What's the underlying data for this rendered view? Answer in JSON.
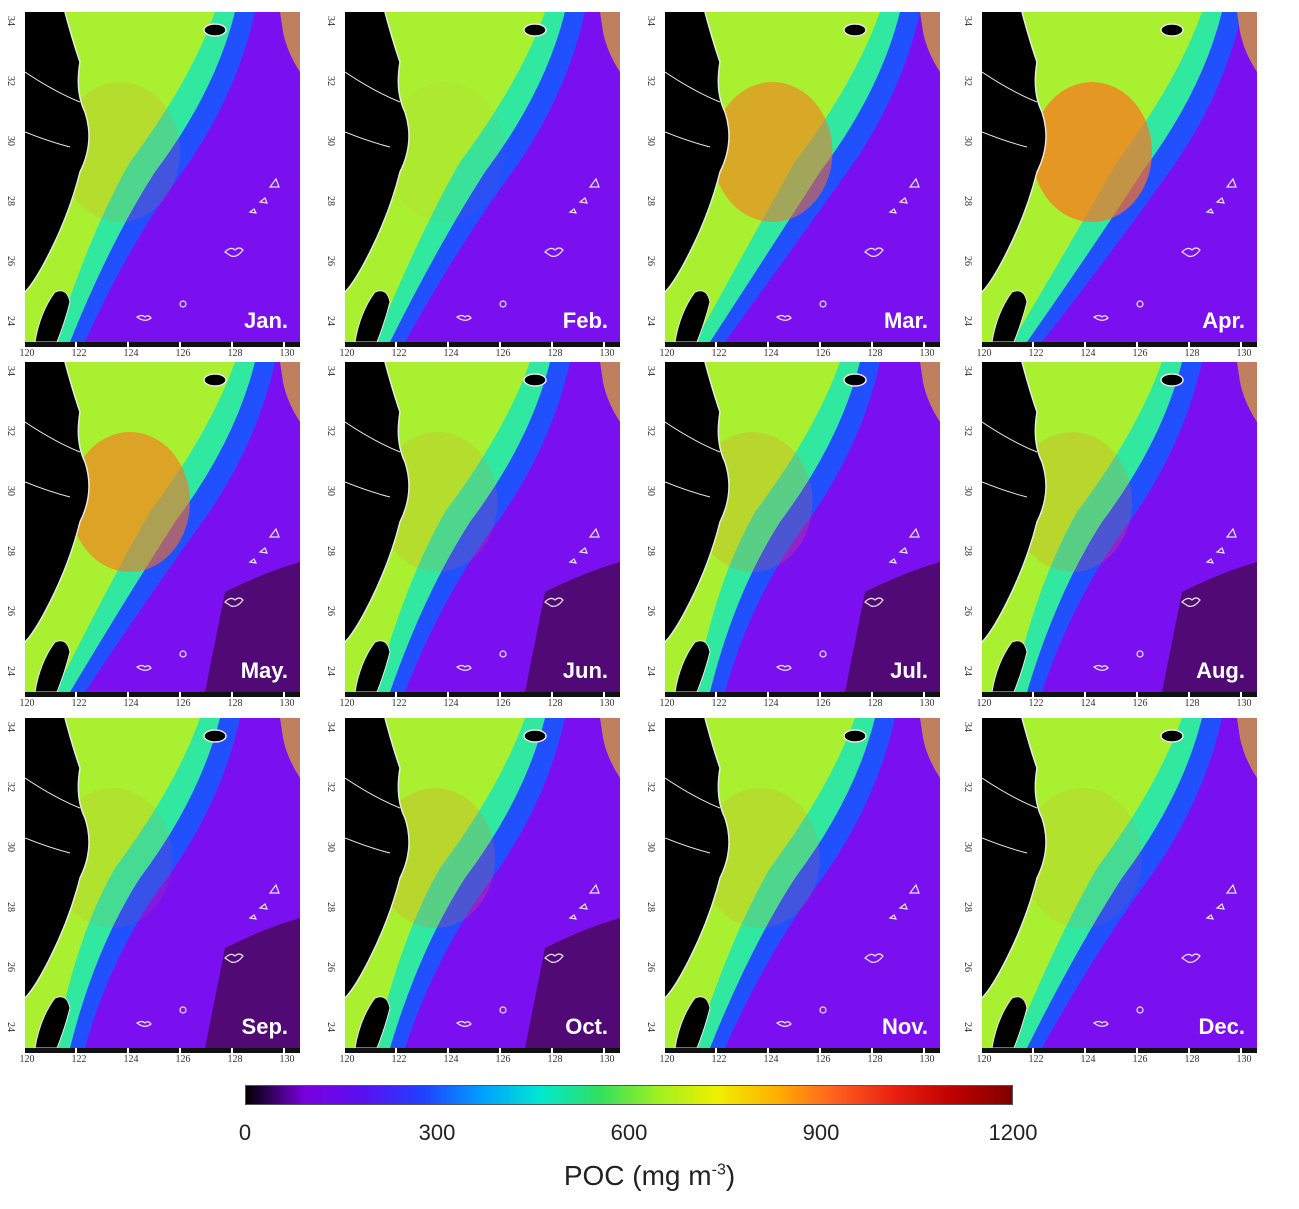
{
  "panels": [
    {
      "month": "Jan."
    },
    {
      "month": "Feb."
    },
    {
      "month": "Mar."
    },
    {
      "month": "Apr."
    },
    {
      "month": "May."
    },
    {
      "month": "Jun."
    },
    {
      "month": "Jul."
    },
    {
      "month": "Aug."
    },
    {
      "month": "Sep."
    },
    {
      "month": "Oct."
    },
    {
      "month": "Nov."
    },
    {
      "month": "Dec."
    }
  ],
  "lat_ticks": [
    "34",
    "32",
    "30",
    "28",
    "26",
    "24"
  ],
  "lon_ticks": [
    "120",
    "122",
    "124",
    "126",
    "128",
    "130"
  ],
  "colorbar": {
    "ticks": [
      "0",
      "300",
      "600",
      "900",
      "1200"
    ],
    "range": [
      0,
      1200
    ],
    "label": "POC (mg m",
    "label_sup": "-3",
    "label_end": ")",
    "colors": [
      "#000000",
      "#7a00e0",
      "#5a10f0",
      "#2040ff",
      "#00a0ff",
      "#00e8d0",
      "#30e060",
      "#a0f020",
      "#f0f000",
      "#ffb000",
      "#ff6020",
      "#e82010",
      "#c00000",
      "#800000"
    ]
  },
  "colors": {
    "land": "#000000",
    "ocean": "#7a10f0",
    "coastline": "#e8e8e8",
    "shelf_high": "#a8f030",
    "shelf_mid": "#30e8a0",
    "shelf_edge": "#2050ff",
    "peak": "#ff7020"
  }
}
